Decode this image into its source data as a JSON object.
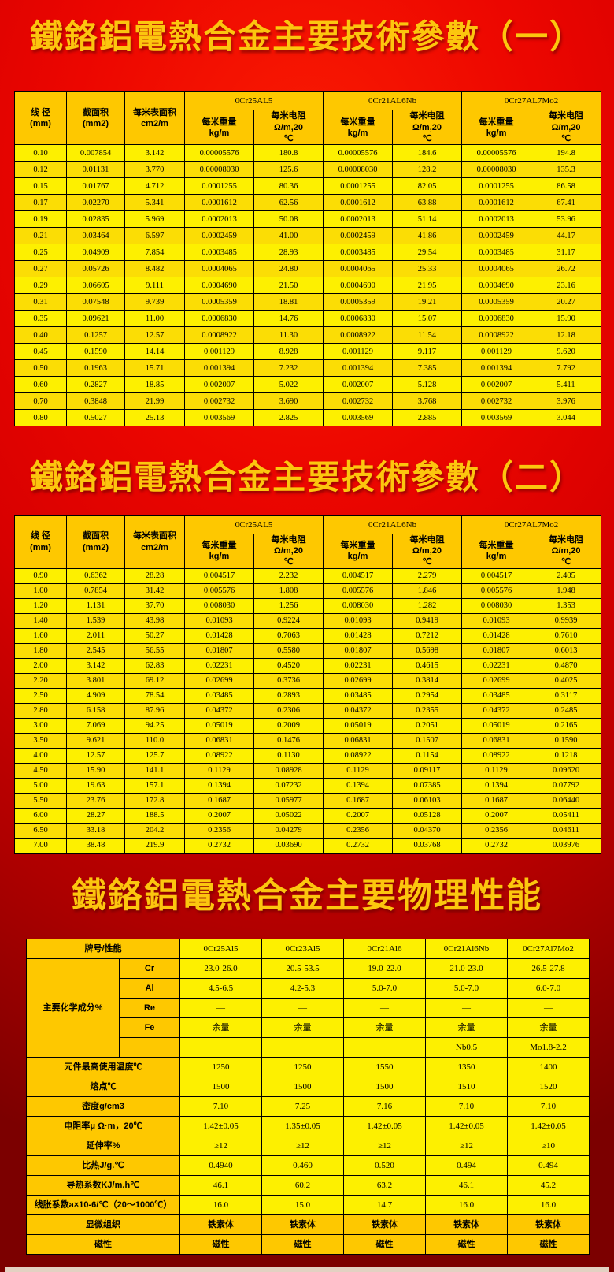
{
  "titles": {
    "params1": "鐵鉻鋁電熱合金主要技術參數（一）",
    "params2": "鐵鉻鋁電熱合金主要技術參數（二）",
    "physical": "鐵鉻鋁電熱合金主要物理性能"
  },
  "colors": {
    "background_red": "#ec0600",
    "background_dark_red": "#7c0000",
    "title_gold": "#fcc60e",
    "cell_yellow": "#fdf000",
    "cell_yellow_alt": "#fbdd05",
    "cell_orange": "#fec800",
    "grid_black": "#000000"
  },
  "params_table_headers": {
    "wire_diameter": "线 径\n(mm)",
    "cross_section": "截面积\n(mm2)",
    "surface_per_meter": "每米表面积\ncm2/m",
    "groups": [
      "0Cr25AL5",
      "0Cr21AL6Nb",
      "0Cr27AL7Mo2"
    ],
    "weight_per_meter": "每米重量\nkg/m",
    "resistance_per_meter": "每米电阻\nΩ/m,20\n℃"
  },
  "params_table_1_rows": [
    [
      "0.10",
      "0.007854",
      "3.142",
      "0.00005576",
      "180.8",
      "0.00005576",
      "184.6",
      "0.00005576",
      "194.8"
    ],
    [
      "0.12",
      "0.01131",
      "3.770",
      "0.00008030",
      "125.6",
      "0.00008030",
      "128.2",
      "0.00008030",
      "135.3"
    ],
    [
      "0.15",
      "0.01767",
      "4.712",
      "0.0001255",
      "80.36",
      "0.0001255",
      "82.05",
      "0.0001255",
      "86.58"
    ],
    [
      "0.17",
      "0.02270",
      "5.341",
      "0.0001612",
      "62.56",
      "0.0001612",
      "63.88",
      "0.0001612",
      "67.41"
    ],
    [
      "0.19",
      "0.02835",
      "5.969",
      "0.0002013",
      "50.08",
      "0.0002013",
      "51.14",
      "0.0002013",
      "53.96"
    ],
    [
      "0.21",
      "0.03464",
      "6.597",
      "0.0002459",
      "41.00",
      "0.0002459",
      "41.86",
      "0.0002459",
      "44.17"
    ],
    [
      "0.25",
      "0.04909",
      "7.854",
      "0.0003485",
      "28.93",
      "0.0003485",
      "29.54",
      "0.0003485",
      "31.17"
    ],
    [
      "0.27",
      "0.05726",
      "8.482",
      "0.0004065",
      "24.80",
      "0.0004065",
      "25.33",
      "0.0004065",
      "26.72"
    ],
    [
      "0.29",
      "0.06605",
      "9.111",
      "0.0004690",
      "21.50",
      "0.0004690",
      "21.95",
      "0.0004690",
      "23.16"
    ],
    [
      "0.31",
      "0.07548",
      "9.739",
      "0.0005359",
      "18.81",
      "0.0005359",
      "19.21",
      "0.0005359",
      "20.27"
    ],
    [
      "0.35",
      "0.09621",
      "11.00",
      "0.0006830",
      "14.76",
      "0.0006830",
      "15.07",
      "0.0006830",
      "15.90"
    ],
    [
      "0.40",
      "0.1257",
      "12.57",
      "0.0008922",
      "11.30",
      "0.0008922",
      "11.54",
      "0.0008922",
      "12.18"
    ],
    [
      "0.45",
      "0.1590",
      "14.14",
      "0.001129",
      "8.928",
      "0.001129",
      "9.117",
      "0.001129",
      "9.620"
    ],
    [
      "0.50",
      "0.1963",
      "15.71",
      "0.001394",
      "7.232",
      "0.001394",
      "7.385",
      "0.001394",
      "7.792"
    ],
    [
      "0.60",
      "0.2827",
      "18.85",
      "0.002007",
      "5.022",
      "0.002007",
      "5.128",
      "0.002007",
      "5.411"
    ],
    [
      "0.70",
      "0.3848",
      "21.99",
      "0.002732",
      "3.690",
      "0.002732",
      "3.768",
      "0.002732",
      "3.976"
    ],
    [
      "0.80",
      "0.5027",
      "25.13",
      "0.003569",
      "2.825",
      "0.003569",
      "2.885",
      "0.003569",
      "3.044"
    ]
  ],
  "params_table_2_rows": [
    [
      "0.90",
      "0.6362",
      "28.28",
      "0.004517",
      "2.232",
      "0.004517",
      "2.279",
      "0.004517",
      "2.405"
    ],
    [
      "1.00",
      "0.7854",
      "31.42",
      "0.005576",
      "1.808",
      "0.005576",
      "1.846",
      "0.005576",
      "1.948"
    ],
    [
      "1.20",
      "1.131",
      "37.70",
      "0.008030",
      "1.256",
      "0.008030",
      "1.282",
      "0.008030",
      "1.353"
    ],
    [
      "1.40",
      "1.539",
      "43.98",
      "0.01093",
      "0.9224",
      "0.01093",
      "0.9419",
      "0.01093",
      "0.9939"
    ],
    [
      "1.60",
      "2.011",
      "50.27",
      "0.01428",
      "0.7063",
      "0.01428",
      "0.7212",
      "0.01428",
      "0.7610"
    ],
    [
      "1.80",
      "2.545",
      "56.55",
      "0.01807",
      "0.5580",
      "0.01807",
      "0.5698",
      "0.01807",
      "0.6013"
    ],
    [
      "2.00",
      "3.142",
      "62.83",
      "0.02231",
      "0.4520",
      "0.02231",
      "0.4615",
      "0.02231",
      "0.4870"
    ],
    [
      "2.20",
      "3.801",
      "69.12",
      "0.02699",
      "0.3736",
      "0.02699",
      "0.3814",
      "0.02699",
      "0.4025"
    ],
    [
      "2.50",
      "4.909",
      "78.54",
      "0.03485",
      "0.2893",
      "0.03485",
      "0.2954",
      "0.03485",
      "0.3117"
    ],
    [
      "2.80",
      "6.158",
      "87.96",
      "0.04372",
      "0.2306",
      "0.04372",
      "0.2355",
      "0.04372",
      "0.2485"
    ],
    [
      "3.00",
      "7.069",
      "94.25",
      "0.05019",
      "0.2009",
      "0.05019",
      "0.2051",
      "0.05019",
      "0.2165"
    ],
    [
      "3.50",
      "9.621",
      "110.0",
      "0.06831",
      "0.1476",
      "0.06831",
      "0.1507",
      "0.06831",
      "0.1590"
    ],
    [
      "4.00",
      "12.57",
      "125.7",
      "0.08922",
      "0.1130",
      "0.08922",
      "0.1154",
      "0.08922",
      "0.1218"
    ],
    [
      "4.50",
      "15.90",
      "141.1",
      "0.1129",
      "0.08928",
      "0.1129",
      "0.09117",
      "0.1129",
      "0.09620"
    ],
    [
      "5.00",
      "19.63",
      "157.1",
      "0.1394",
      "0.07232",
      "0.1394",
      "0.07385",
      "0.1394",
      "0.07792"
    ],
    [
      "5.50",
      "23.76",
      "172.8",
      "0.1687",
      "0.05977",
      "0.1687",
      "0.06103",
      "0.1687",
      "0.06440"
    ],
    [
      "6.00",
      "28.27",
      "188.5",
      "0.2007",
      "0.05022",
      "0.2007",
      "0.05128",
      "0.2007",
      "0.05411"
    ],
    [
      "6.50",
      "33.18",
      "204.2",
      "0.2356",
      "0.04279",
      "0.2356",
      "0.04370",
      "0.2356",
      "0.04611"
    ],
    [
      "7.00",
      "38.48",
      "219.9",
      "0.2732",
      "0.03690",
      "0.2732",
      "0.03768",
      "0.2732",
      "0.03976"
    ]
  ],
  "physical_table": {
    "corner_label": "牌号/性能",
    "grades": [
      "0Cr25Al5",
      "0Cr23Al5",
      "0Cr21Al6",
      "0Cr21Al6Nb",
      "0Cr27Al7Mo2"
    ],
    "chem_label": "主要化学成分%",
    "chem_rows": [
      {
        "element": "Cr",
        "values": [
          "23.0-26.0",
          "20.5-53.5",
          "19.0-22.0",
          "21.0-23.0",
          "26.5-27.8"
        ]
      },
      {
        "element": "Al",
        "values": [
          "4.5-6.5",
          "4.2-5.3",
          "5.0-7.0",
          "5.0-7.0",
          "6.0-7.0"
        ]
      },
      {
        "element": "Re",
        "values": [
          "—",
          "—",
          "—",
          "—",
          "—"
        ]
      },
      {
        "element": "Fe",
        "values": [
          "余量",
          "余量",
          "余量",
          "余量",
          "余量"
        ]
      },
      {
        "element": "",
        "values": [
          "",
          "",
          "",
          "Nb0.5",
          "Mo1.8-2.2"
        ]
      }
    ],
    "property_rows": [
      {
        "label": "元件最高使用温度℃",
        "values": [
          "1250",
          "1250",
          "1550",
          "1350",
          "1400"
        ]
      },
      {
        "label": "熔点℃",
        "values": [
          "1500",
          "1500",
          "1500",
          "1510",
          "1520"
        ]
      },
      {
        "label": "密度g/cm3",
        "values": [
          "7.10",
          "7.25",
          "7.16",
          "7.10",
          "7.10"
        ]
      },
      {
        "label": "电阻率μ Ω·m，20℃",
        "values": [
          "1.42±0.05",
          "1.35±0.05",
          "1.42±0.05",
          "1.42±0.05",
          "1.42±0.05"
        ]
      },
      {
        "label": "延伸率%",
        "values": [
          "≥12",
          "≥12",
          "≥12",
          "≥12",
          "≥10"
        ]
      },
      {
        "label": "比热J/g.℃",
        "values": [
          "0.4940",
          "0.460",
          "0.520",
          "0.494",
          "0.494"
        ]
      },
      {
        "label": "导热系数KJ/m.h℃",
        "values": [
          "46.1",
          "60.2",
          "63.2",
          "46.1",
          "45.2"
        ]
      },
      {
        "label": "线胀系数a×10-6/℃（20～1000℃）",
        "values": [
          "16.0",
          "15.0",
          "14.7",
          "16.0",
          "16.0"
        ]
      }
    ],
    "bottom_rows": [
      {
        "label": "显微组织",
        "values": [
          "铁素体",
          "铁素体",
          "铁素体",
          "铁素体",
          "铁素体"
        ]
      },
      {
        "label": "磁性",
        "values": [
          "磁性",
          "磁性",
          "磁性",
          "磁性",
          "磁性"
        ]
      }
    ]
  }
}
